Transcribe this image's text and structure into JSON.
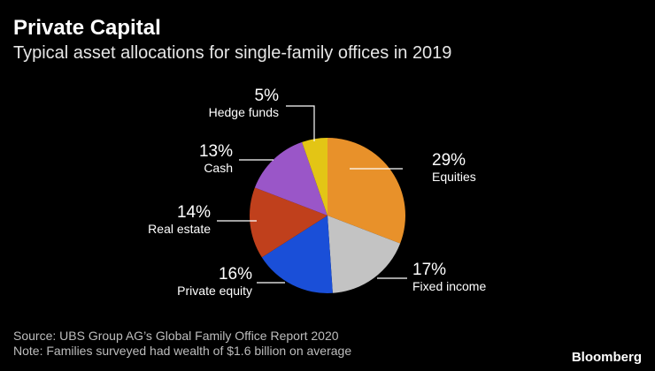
{
  "header": {
    "title": "Private Capital",
    "subtitle": "Typical asset allocations for single-family offices in 2019"
  },
  "footer": {
    "source": "Source: UBS Group AG’s Global Family Office Report 2020",
    "note": "Note: Families surveyed had wealth of $1.6 billion on average",
    "brand": "Bloomberg"
  },
  "chart_data": {
    "type": "pie",
    "title": "Private Capital",
    "subtitle": "Typical asset allocations for single-family offices in 2019",
    "start": "12 o'clock, clockwise",
    "slices": [
      {
        "label": "Equities",
        "value": 29,
        "value_label": "29%",
        "color": "#e8912a"
      },
      {
        "label": "Fixed income",
        "value": 17,
        "value_label": "17%",
        "color": "#c3c3c3"
      },
      {
        "label": "Private equity",
        "value": 16,
        "value_label": "16%",
        "color": "#1a4fd8"
      },
      {
        "label": "Real estate",
        "value": 14,
        "value_label": "14%",
        "color": "#c0401c"
      },
      {
        "label": "Cash",
        "value": 13,
        "value_label": "13%",
        "color": "#9a56c8"
      },
      {
        "label": "Hedge funds",
        "value": 5,
        "value_label": "5%",
        "color": "#e3c515"
      }
    ]
  }
}
